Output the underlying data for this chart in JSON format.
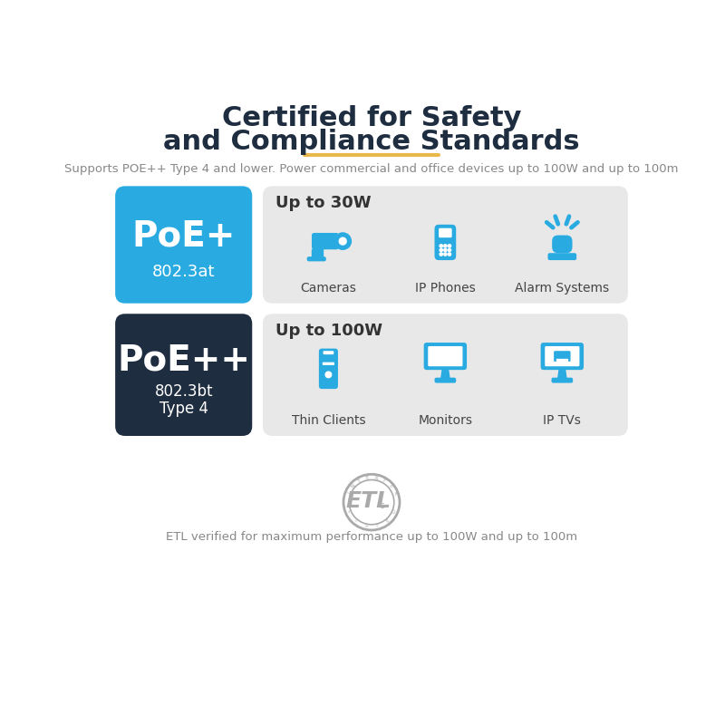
{
  "bg_color": "#ffffff",
  "title_line1": "Certified for Safety",
  "title_line2": "and Compliance Standards",
  "title_color": "#1e2d40",
  "title_fontsize": 22,
  "gold_line_color": "#e8b84b",
  "subtitle": "Supports POE++ Type 4 and lower. Power commercial and office devices up to 100W and up to 100m",
  "subtitle_color": "#888888",
  "subtitle_fontsize": 9.5,
  "poe_plus_bg": "#29abe2",
  "poe_plus_text": "PoE+",
  "poe_plus_sub": "802.3at",
  "poe_plus_text_color": "#ffffff",
  "poe_plus_panel_bg": "#e8e8e8",
  "poe_plus_power": "Up to 30W",
  "poe_plus_devices": [
    "Cameras",
    "IP Phones",
    "Alarm Systems"
  ],
  "poe_pp_bg": "#1e2d40",
  "poe_pp_text": "PoE++",
  "poe_pp_sub1": "802.3bt",
  "poe_pp_sub2": "Type 4",
  "poe_pp_text_color": "#ffffff",
  "poe_pp_panel_bg": "#e8e8e8",
  "poe_pp_power": "Up to 100W",
  "poe_pp_devices": [
    "Thin Clients",
    "Monitors",
    "IP TVs"
  ],
  "icon_color": "#29abe2",
  "device_label_color": "#444444",
  "device_label_fontsize": 10,
  "power_label_fontsize": 13,
  "power_label_color": "#333333",
  "etl_color": "#aaaaaa",
  "etl_footer": "ETL verified for maximum performance up to 100W and up to 100m",
  "etl_footer_color": "#888888",
  "etl_footer_fontsize": 9.5
}
